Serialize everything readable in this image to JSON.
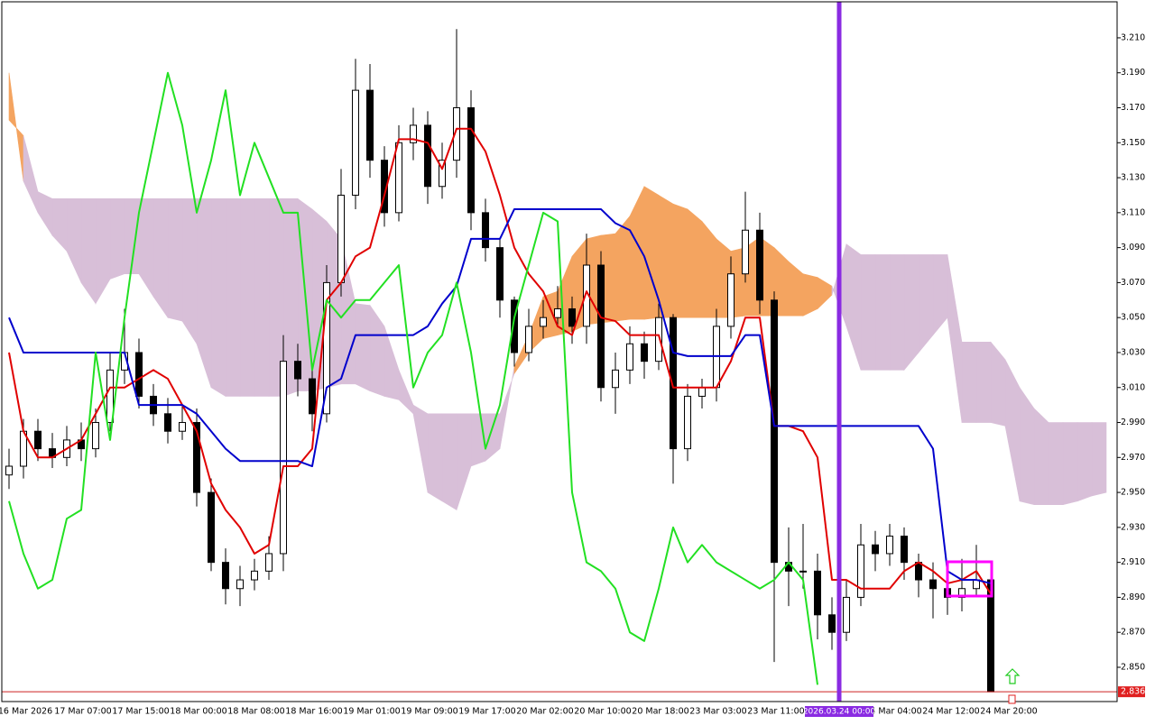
{
  "chart_data": {
    "type": "candlestick",
    "ylim": [
      2.8304,
      3.2306
    ],
    "yticks": [
      {
        "value": 2.85,
        "label": "2.850"
      },
      {
        "value": 2.87,
        "label": "2.870"
      },
      {
        "value": 2.89,
        "label": "2.890"
      },
      {
        "value": 2.91,
        "label": "2.910"
      },
      {
        "value": 2.93,
        "label": "2.930"
      },
      {
        "value": 2.95,
        "label": "2.950"
      },
      {
        "value": 2.97,
        "label": "2.970"
      },
      {
        "value": 2.99,
        "label": "2.990"
      },
      {
        "value": 3.01,
        "label": "3.010"
      },
      {
        "value": 3.03,
        "label": "3.030"
      },
      {
        "value": 3.05,
        "label": "3.050"
      },
      {
        "value": 3.07,
        "label": "3.070"
      },
      {
        "value": 3.09,
        "label": "3.090"
      },
      {
        "value": 3.11,
        "label": "3.110"
      },
      {
        "value": 3.13,
        "label": "3.130"
      },
      {
        "value": 3.15,
        "label": "3.150"
      },
      {
        "value": 3.17,
        "label": "3.170"
      },
      {
        "value": 3.19,
        "label": "3.190"
      },
      {
        "value": 3.21,
        "label": "3.210"
      }
    ],
    "grid": false,
    "time_labels": [
      "16 Mar 2026",
      "17 Mar 07:00",
      "17 Mar 15:00",
      "18 Mar 00:00",
      "18 Mar 08:00",
      "18 Mar 16:00",
      "19 Mar 01:00",
      "19 Mar 09:00",
      "19 Mar 17:00",
      "20 Mar 02:00",
      "20 Mar 10:00",
      "20 Mar 18:00",
      "23 Mar 03:00",
      "23 Mar 11:00",
      "24 Mar 04:00",
      "24 Mar 12:00",
      "24 Mar 20:00"
    ],
    "crosshair_label": "2026.03.24 00:00",
    "last_price": 2.836,
    "candle_up_color": "#ffffff",
    "candle_down_color": "#000000",
    "open": [
      2.96,
      2.965,
      2.985,
      2.975,
      2.97,
      2.98,
      2.975,
      2.99,
      3.02,
      3.03,
      3.005,
      2.995,
      2.985,
      2.99,
      2.95,
      2.91,
      2.895,
      2.9,
      2.905,
      2.915,
      3.025,
      3.015,
      2.995,
      3.07,
      3.12,
      3.18,
      3.14,
      3.11,
      3.15,
      3.16,
      3.125,
      3.14,
      3.17,
      3.11,
      3.09,
      3.06,
      3.03,
      3.045,
      3.05,
      3.055,
      3.045,
      3.08,
      3.01,
      3.02,
      3.035,
      3.025,
      3.05,
      2.975,
      3.005,
      3.01,
      3.045,
      3.075,
      3.1,
      3.06,
      2.91,
      2.905,
      2.905,
      2.88,
      2.87,
      2.89,
      2.92,
      2.915,
      2.925,
      2.91,
      2.9,
      2.895,
      2.89,
      2.895,
      2.9
    ],
    "high": [
      2.975,
      2.992,
      2.992,
      2.984,
      2.988,
      2.99,
      2.998,
      3.03,
      3.055,
      3.038,
      3.012,
      3.004,
      3.0,
      2.998,
      2.958,
      2.918,
      2.908,
      2.912,
      2.925,
      3.04,
      3.035,
      3.022,
      3.08,
      3.135,
      3.198,
      3.195,
      3.148,
      3.16,
      3.17,
      3.168,
      3.15,
      3.215,
      3.18,
      3.118,
      3.095,
      3.062,
      3.055,
      3.06,
      3.068,
      3.062,
      3.098,
      3.088,
      3.03,
      3.045,
      3.042,
      3.058,
      3.052,
      3.012,
      3.015,
      3.055,
      3.085,
      3.122,
      3.11,
      3.065,
      2.93,
      2.932,
      2.915,
      2.89,
      2.9,
      2.932,
      2.928,
      2.932,
      2.93,
      2.915,
      2.91,
      2.905,
      2.912,
      2.92,
      2.905
    ],
    "low": [
      2.952,
      2.958,
      2.968,
      2.964,
      2.965,
      2.968,
      2.97,
      2.985,
      3.012,
      2.998,
      2.988,
      2.978,
      2.98,
      2.942,
      2.905,
      2.886,
      2.885,
      2.894,
      2.9,
      2.905,
      3.005,
      2.985,
      2.99,
      3.062,
      3.112,
      3.13,
      3.102,
      3.105,
      3.14,
      3.115,
      3.118,
      3.13,
      3.1,
      3.082,
      3.05,
      3.022,
      3.025,
      3.038,
      3.045,
      3.035,
      3.035,
      3.002,
      2.995,
      3.012,
      3.015,
      3.02,
      2.955,
      2.968,
      2.998,
      3.002,
      3.038,
      3.07,
      3.052,
      2.853,
      2.885,
      2.895,
      2.866,
      2.86,
      2.865,
      2.885,
      2.905,
      2.908,
      2.9,
      2.89,
      2.878,
      2.88,
      2.882,
      2.89,
      2.836
    ],
    "close": [
      2.965,
      2.985,
      2.975,
      2.97,
      2.98,
      2.975,
      2.99,
      3.02,
      3.03,
      3.005,
      2.995,
      2.985,
      2.99,
      2.95,
      2.91,
      2.895,
      2.9,
      2.905,
      2.915,
      3.025,
      3.015,
      2.995,
      3.07,
      3.12,
      3.18,
      3.14,
      3.11,
      3.15,
      3.16,
      3.125,
      3.14,
      3.17,
      3.11,
      3.09,
      3.06,
      3.03,
      3.045,
      3.05,
      3.055,
      3.045,
      3.08,
      3.01,
      3.02,
      3.035,
      3.025,
      3.05,
      2.975,
      3.005,
      3.01,
      3.045,
      3.075,
      3.1,
      3.06,
      2.91,
      2.905,
      2.905,
      2.88,
      2.87,
      2.89,
      2.92,
      2.915,
      2.925,
      2.91,
      2.9,
      2.895,
      2.89,
      2.895,
      2.9,
      2.836
    ],
    "cloud": {
      "up_color": "#f4a460",
      "down_color": "#d8bfd8",
      "span_a": [
        3.19,
        3.128,
        3.11,
        3.097,
        3.088,
        3.07,
        3.058,
        3.072,
        3.075,
        3.075,
        3.062,
        3.05,
        3.048,
        3.035,
        3.01,
        3.005,
        3.005,
        3.005,
        3.005,
        3.005,
        3.008,
        3.008,
        3.01,
        3.012,
        3.012,
        3.008,
        3.005,
        3.003,
        2.995,
        2.95,
        2.945,
        2.94,
        2.965,
        2.968,
        2.975,
        3.022,
        3.04,
        3.062,
        3.065,
        3.085,
        3.095,
        3.097,
        3.098,
        3.108,
        3.125,
        3.12,
        3.115,
        3.112,
        3.105,
        3.095,
        3.088,
        3.09,
        3.096,
        3.09,
        3.082,
        3.075,
        3.073,
        3.068,
        3.045,
        3.02,
        3.02,
        3.02,
        3.02,
        3.03,
        3.04,
        3.05,
        2.99,
        2.99,
        2.99,
        2.988,
        2.945,
        2.943,
        2.943,
        2.943,
        2.945,
        2.948,
        2.95
      ],
      "span_b": [
        3.163,
        3.154,
        3.122,
        3.118,
        3.118,
        3.118,
        3.118,
        3.118,
        3.118,
        3.118,
        3.118,
        3.118,
        3.118,
        3.118,
        3.118,
        3.118,
        3.118,
        3.118,
        3.118,
        3.118,
        3.118,
        3.112,
        3.105,
        3.095,
        3.058,
        3.057,
        3.045,
        3.02,
        3.0,
        2.995,
        2.995,
        2.995,
        2.995,
        2.995,
        2.995,
        3.018,
        3.03,
        3.038,
        3.04,
        3.042,
        3.046,
        3.047,
        3.048,
        3.049,
        3.049,
        3.05,
        3.05,
        3.05,
        3.05,
        3.05,
        3.05,
        3.051,
        3.051,
        3.051,
        3.051,
        3.051,
        3.055,
        3.063,
        3.092,
        3.086,
        3.086,
        3.086,
        3.086,
        3.086,
        3.086,
        3.086,
        3.036,
        3.036,
        3.036,
        3.026,
        3.01,
        2.998,
        2.99,
        2.99,
        2.99,
        2.99,
        2.99
      ]
    },
    "lines": [
      {
        "color": "#e00000",
        "values": [
          3.03,
          2.985,
          2.97,
          2.97,
          2.975,
          2.98,
          2.995,
          3.01,
          3.01,
          3.015,
          3.02,
          3.015,
          3.0,
          2.985,
          2.955,
          2.94,
          2.93,
          2.915,
          2.92,
          2.965,
          2.965,
          2.975,
          3.06,
          3.07,
          3.085,
          3.09,
          3.12,
          3.152,
          3.152,
          3.15,
          3.135,
          3.158,
          3.158,
          3.145,
          3.12,
          3.09,
          3.075,
          3.065,
          3.045,
          3.04,
          3.065,
          3.05,
          3.048,
          3.04,
          3.04,
          3.04,
          3.01,
          3.01,
          3.01,
          3.01,
          3.025,
          3.05,
          3.05,
          2.988,
          2.988,
          2.985,
          2.97,
          2.9,
          2.9,
          2.895,
          2.895,
          2.895,
          2.905,
          2.91,
          2.905,
          2.898,
          2.9,
          2.905,
          2.892
        ]
      },
      {
        "color": "#0000cc",
        "values": [
          3.05,
          3.03,
          3.03,
          3.03,
          3.03,
          3.03,
          3.03,
          3.03,
          3.03,
          3.0,
          3.0,
          3.0,
          3.0,
          2.995,
          2.985,
          2.975,
          2.968,
          2.968,
          2.968,
          2.968,
          2.968,
          2.965,
          3.01,
          3.015,
          3.04,
          3.04,
          3.04,
          3.04,
          3.04,
          3.045,
          3.058,
          3.068,
          3.095,
          3.095,
          3.095,
          3.112,
          3.112,
          3.112,
          3.112,
          3.112,
          3.112,
          3.112,
          3.104,
          3.1,
          3.085,
          3.06,
          3.03,
          3.028,
          3.028,
          3.028,
          3.028,
          3.04,
          3.04,
          2.988,
          2.988,
          2.988,
          2.988,
          2.988,
          2.988,
          2.988,
          2.988,
          2.988,
          2.988,
          2.988,
          2.975,
          2.905,
          2.9,
          2.9,
          2.898
        ]
      },
      {
        "color": "#22e022",
        "values": [
          2.945,
          2.915,
          2.895,
          2.9,
          2.935,
          2.94,
          3.03,
          2.98,
          3.05,
          3.11,
          3.15,
          3.19,
          3.16,
          3.11,
          3.14,
          3.18,
          3.12,
          3.15,
          3.13,
          3.11,
          3.11,
          3.02,
          3.06,
          3.05,
          3.06,
          3.06,
          3.07,
          3.08,
          3.01,
          3.03,
          3.04,
          3.07,
          3.03,
          2.975,
          3.0,
          3.05,
          3.08,
          3.11,
          3.105,
          2.95,
          2.91,
          2.905,
          2.895,
          2.87,
          2.865,
          2.895,
          2.93,
          2.91,
          2.92,
          2.91,
          2.905,
          2.9,
          2.895,
          2.9,
          2.91,
          2.9,
          2.84,
          null,
          null,
          null,
          null,
          null,
          null,
          null,
          null,
          null,
          null,
          null,
          null
        ]
      }
    ]
  }
}
